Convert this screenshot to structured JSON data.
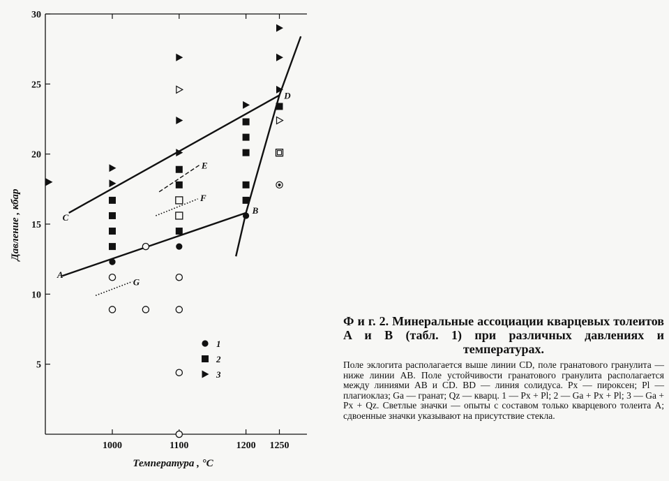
{
  "chart_data": {
    "type": "scatter",
    "xlabel": "Температура , °С",
    "ylabel": "Давление , кбар",
    "x_ticks": [
      1000,
      1100,
      1200,
      1250
    ],
    "y_ticks": [
      5,
      10,
      15,
      20,
      25,
      30
    ],
    "xlim": [
      905,
      1290
    ],
    "ylim": [
      0,
      30
    ],
    "grid": false,
    "legend": {
      "placement": "bottom-center",
      "entries": [
        {
          "marker": "circle-filled",
          "label": "1"
        },
        {
          "marker": "square-filled",
          "label": "2"
        },
        {
          "marker": "triangle-filled",
          "label": "3"
        }
      ]
    },
    "lines": [
      {
        "label_start": "C",
        "label_end": "D",
        "style": "solid",
        "points": [
          [
            935,
            15.8
          ],
          [
            1250,
            24.2
          ]
        ]
      },
      {
        "label_start": "A",
        "label_end": "B",
        "style": "solid",
        "points": [
          [
            925,
            11.3
          ],
          [
            1200,
            15.8
          ]
        ]
      },
      {
        "label_start": "",
        "label_end": "",
        "style": "solid",
        "points": [
          [
            1185,
            12.7
          ],
          [
            1200,
            15.8
          ],
          [
            1250,
            24.2
          ],
          [
            1282,
            28.4
          ]
        ]
      },
      {
        "label_start": "",
        "label_end": "E",
        "style": "dashed",
        "points": [
          [
            1070,
            17.3
          ],
          [
            1130,
            19.2
          ]
        ]
      },
      {
        "label_start": "",
        "label_end": "F",
        "style": "dotted",
        "points": [
          [
            1065,
            15.6
          ],
          [
            1128,
            16.8
          ]
        ]
      },
      {
        "label_start": "",
        "label_end": "G",
        "style": "dotted",
        "points": [
          [
            975,
            9.9
          ],
          [
            1030,
            10.9
          ]
        ]
      }
    ],
    "line_point_labels": [
      {
        "text": "C",
        "x": 930,
        "y": 15.5
      },
      {
        "text": "D",
        "x": 1262,
        "y": 24.2
      },
      {
        "text": "A",
        "x": 922,
        "y": 11.4
      },
      {
        "text": "B",
        "x": 1214,
        "y": 16.0
      },
      {
        "text": "E",
        "x": 1138,
        "y": 19.2
      },
      {
        "text": "F",
        "x": 1136,
        "y": 16.9
      },
      {
        "text": "G",
        "x": 1036,
        "y": 10.9
      }
    ],
    "series": [
      {
        "name": "1",
        "marker": "circle-filled",
        "points": [
          [
            1000,
            12.3
          ],
          [
            1100,
            13.4
          ],
          [
            1200,
            15.6
          ]
        ]
      },
      {
        "name": "2",
        "marker": "square-filled",
        "points": [
          [
            1000,
            13.4
          ],
          [
            1000,
            14.5
          ],
          [
            1000,
            15.6
          ],
          [
            1000,
            16.7
          ],
          [
            1100,
            14.5
          ],
          [
            1100,
            17.8
          ],
          [
            1100,
            18.9
          ],
          [
            1200,
            16.7
          ],
          [
            1200,
            17.8
          ],
          [
            1200,
            20.1
          ],
          [
            1200,
            21.2
          ],
          [
            1200,
            22.3
          ],
          [
            1250,
            23.4
          ]
        ]
      },
      {
        "name": "3",
        "marker": "triangle-filled",
        "points": [
          [
            905,
            18.0
          ],
          [
            1000,
            17.9
          ],
          [
            1000,
            19.0
          ],
          [
            1100,
            20.1
          ],
          [
            1100,
            22.4
          ],
          [
            1100,
            26.9
          ],
          [
            1200,
            23.5
          ],
          [
            1250,
            24.6
          ],
          [
            1250,
            26.9
          ],
          [
            1250,
            29.0
          ]
        ]
      },
      {
        "name": "1 open",
        "marker": "circle-open",
        "points": [
          [
            1000,
            8.9
          ],
          [
            1000,
            11.2
          ],
          [
            1050,
            8.9
          ],
          [
            1050,
            13.4
          ],
          [
            1100,
            0.0
          ],
          [
            1100,
            4.4
          ],
          [
            1100,
            8.9
          ],
          [
            1100,
            11.2
          ]
        ]
      },
      {
        "name": "2 open",
        "marker": "square-open",
        "points": [
          [
            1100,
            15.6
          ],
          [
            1100,
            16.7
          ]
        ]
      },
      {
        "name": "3 open",
        "marker": "triangle-open",
        "points": [
          [
            1100,
            24.6
          ],
          [
            1250,
            22.4
          ]
        ]
      },
      {
        "name": "2 double",
        "marker": "square-double",
        "points": [
          [
            1250,
            20.1
          ]
        ]
      },
      {
        "name": "1 double",
        "marker": "circle-double",
        "points": [
          [
            1250,
            17.8
          ]
        ]
      }
    ]
  },
  "caption": {
    "title": "Ф и г. 2. Минеральные ассоциации кварцевых толеитов A и B (табл. 1) при различных давлениях и температурах.",
    "body": "Поле эклогита располагается выше линии CD, поле гранатового гранулита — ниже линии AB. Поле устойчивости гранатового гранулита располагается между линиями AB и CD. BD — линия солидуса. Px — пироксен; Pl — плагиоклаз; Ga — гранат; Qz — кварц. 1 — Px + Pl; 2 — Ga + Px + Pl; 3 — Ga + Px + Qz. Светлые значки — опыты с составом только кварцевого толеита A; сдвоенные значки указывают на присутствие стекла."
  }
}
